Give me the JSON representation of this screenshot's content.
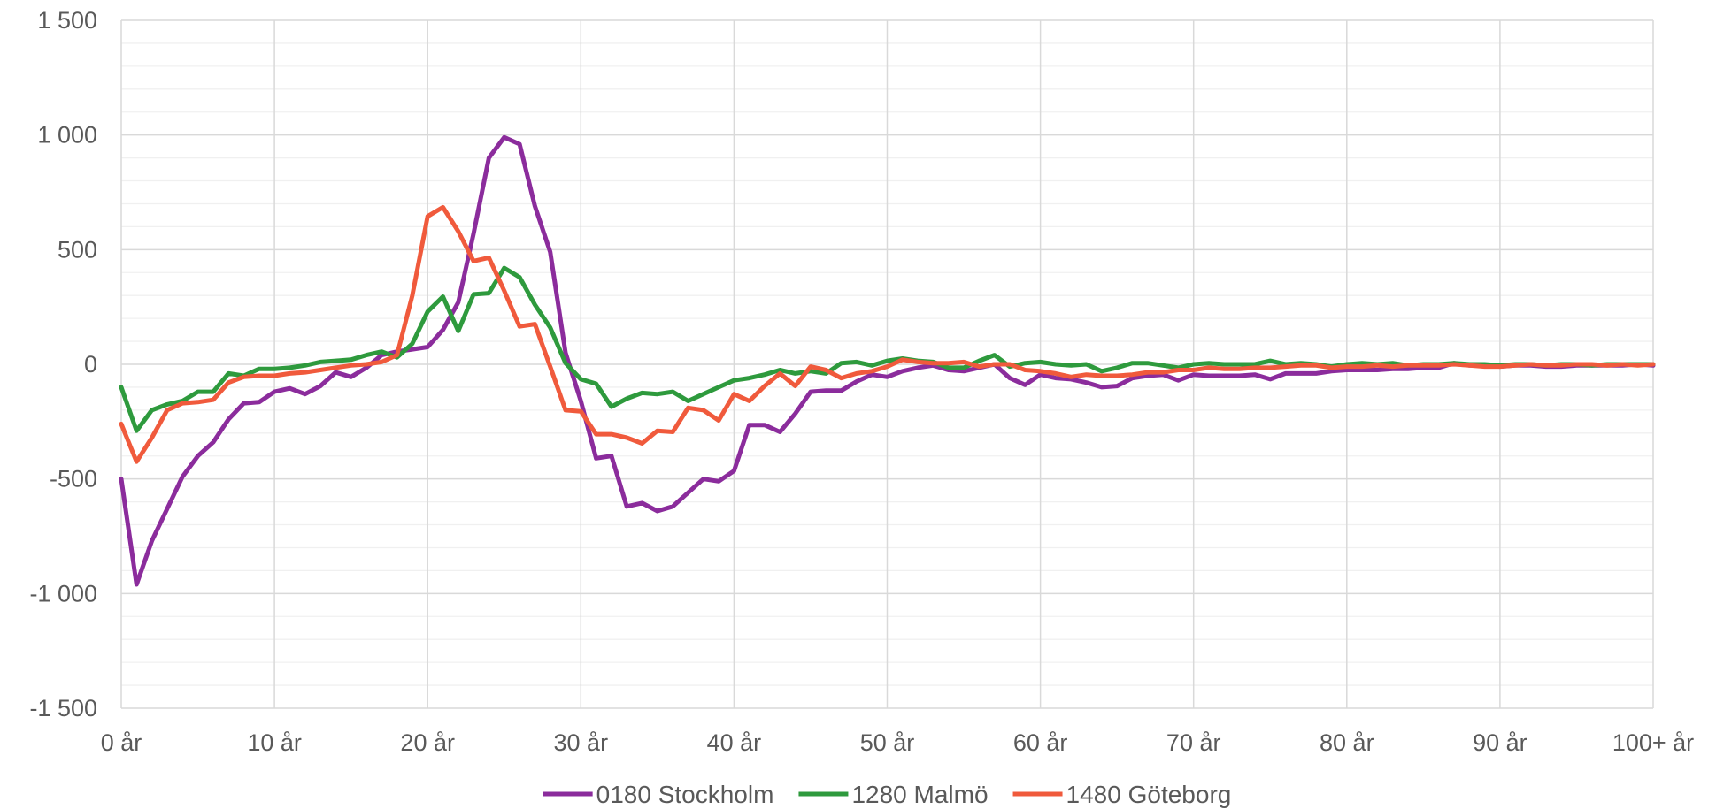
{
  "chart_data": {
    "type": "line",
    "title": "",
    "xlabel": "",
    "ylabel": "",
    "xlim": [
      0,
      100
    ],
    "ylim": [
      -1500,
      1500
    ],
    "y_ticks": [
      1500,
      1000,
      500,
      0,
      -500,
      -1000,
      -1500
    ],
    "y_tick_labels": [
      "1 500",
      "1 000",
      "500",
      "0",
      "-500",
      "-1 000",
      "-1 500"
    ],
    "x_ticks": [
      0,
      10,
      20,
      30,
      40,
      50,
      60,
      70,
      80,
      90,
      100
    ],
    "x_tick_labels": [
      "0 år",
      "10 år",
      "20 år",
      "30 år",
      "40 år",
      "50 år",
      "60 år",
      "70 år",
      "80 år",
      "90 år",
      "100+ år"
    ],
    "grid": true,
    "legend_position": "bottom",
    "x": [
      0,
      1,
      2,
      3,
      4,
      5,
      6,
      7,
      8,
      9,
      10,
      11,
      12,
      13,
      14,
      15,
      16,
      17,
      18,
      19,
      20,
      21,
      22,
      23,
      24,
      25,
      26,
      27,
      28,
      29,
      30,
      31,
      32,
      33,
      34,
      35,
      36,
      37,
      38,
      39,
      40,
      41,
      42,
      43,
      44,
      45,
      46,
      47,
      48,
      49,
      50,
      51,
      52,
      53,
      54,
      55,
      56,
      57,
      58,
      59,
      60,
      61,
      62,
      63,
      64,
      65,
      66,
      67,
      68,
      69,
      70,
      71,
      72,
      73,
      74,
      75,
      76,
      77,
      78,
      79,
      80,
      81,
      82,
      83,
      84,
      85,
      86,
      87,
      88,
      89,
      90,
      91,
      92,
      93,
      94,
      95,
      96,
      97,
      98,
      99,
      100
    ],
    "series": [
      {
        "name": "0180 Stockholm",
        "color": "#8b2c9c",
        "values": [
          -500,
          -960,
          -770,
          -630,
          -490,
          -400,
          -340,
          -240,
          -170,
          -165,
          -120,
          -105,
          -130,
          -95,
          -35,
          -55,
          -15,
          40,
          55,
          65,
          75,
          150,
          270,
          570,
          900,
          990,
          960,
          690,
          490,
          50,
          -160,
          -410,
          -400,
          -620,
          -605,
          -640,
          -620,
          -560,
          -500,
          -510,
          -465,
          -265,
          -265,
          -295,
          -215,
          -120,
          -115,
          -115,
          -75,
          -45,
          -55,
          -30,
          -15,
          -5,
          -25,
          -30,
          -15,
          0,
          -60,
          -90,
          -45,
          -60,
          -65,
          -80,
          -100,
          -95,
          -60,
          -50,
          -45,
          -70,
          -45,
          -50,
          -50,
          -50,
          -45,
          -65,
          -40,
          -40,
          -40,
          -30,
          -25,
          -25,
          -25,
          -20,
          -20,
          -15,
          -15,
          5,
          -5,
          -5,
          -10,
          -5,
          -5,
          -10,
          -10,
          -5,
          -5,
          -5,
          -5,
          0,
          -5
        ]
      },
      {
        "name": "1280 Malmö",
        "color": "#2e9a3d",
        "values": [
          -100,
          -290,
          -200,
          -175,
          -160,
          -120,
          -120,
          -40,
          -50,
          -20,
          -20,
          -15,
          -5,
          10,
          15,
          20,
          40,
          55,
          30,
          90,
          230,
          295,
          145,
          305,
          310,
          420,
          380,
          260,
          160,
          5,
          -65,
          -85,
          -185,
          -150,
          -125,
          -130,
          -120,
          -160,
          -130,
          -100,
          -70,
          -60,
          -45,
          -25,
          -40,
          -30,
          -40,
          5,
          10,
          -5,
          15,
          25,
          15,
          10,
          -15,
          -15,
          15,
          40,
          -10,
          5,
          10,
          0,
          -5,
          0,
          -30,
          -15,
          5,
          5,
          -5,
          -15,
          0,
          5,
          0,
          0,
          0,
          15,
          0,
          5,
          0,
          -10,
          0,
          5,
          0,
          5,
          -5,
          0,
          0,
          5,
          0,
          0,
          -5,
          0,
          0,
          -5,
          0,
          0,
          -5,
          0,
          0,
          0,
          0
        ]
      },
      {
        "name": "1480 Göteborg",
        "color": "#f05a3c",
        "values": [
          -260,
          -425,
          -320,
          -200,
          -170,
          -165,
          -155,
          -80,
          -55,
          -50,
          -50,
          -40,
          -35,
          -25,
          -15,
          -5,
          0,
          10,
          40,
          300,
          645,
          685,
          580,
          450,
          465,
          320,
          165,
          175,
          -10,
          -200,
          -205,
          -305,
          -305,
          -320,
          -345,
          -290,
          -295,
          -190,
          -200,
          -245,
          -130,
          -160,
          -95,
          -40,
          -95,
          -10,
          -25,
          -60,
          -40,
          -30,
          -10,
          20,
          10,
          5,
          5,
          10,
          -10,
          0,
          0,
          -25,
          -30,
          -40,
          -55,
          -45,
          -50,
          -50,
          -45,
          -35,
          -35,
          -25,
          -25,
          -15,
          -20,
          -20,
          -15,
          -15,
          -10,
          -5,
          -5,
          -15,
          -10,
          -10,
          -5,
          -10,
          -5,
          -5,
          -5,
          0,
          -5,
          -10,
          -10,
          -5,
          0,
          -5,
          -5,
          0,
          0,
          -5,
          0,
          -5,
          0
        ]
      }
    ]
  }
}
